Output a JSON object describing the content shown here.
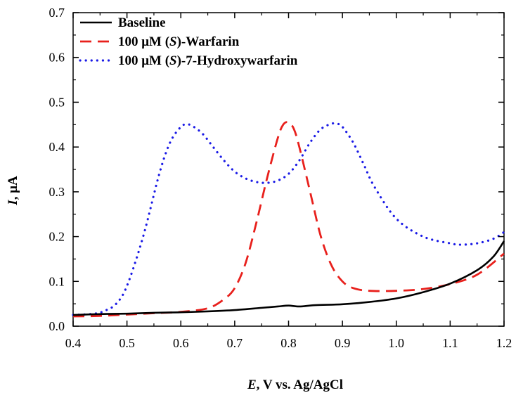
{
  "chart_data": {
    "type": "line",
    "xlabel": {
      "italic": "E",
      "rest": ", V vs. Ag/AgCl"
    },
    "ylabel": {
      "italic": "I",
      "rest": ", μA"
    },
    "xlim": [
      0.4,
      1.2
    ],
    "ylim": [
      0.0,
      0.7
    ],
    "x_ticks": [
      "0.4",
      "0.5",
      "0.6",
      "0.7",
      "0.8",
      "0.9",
      "1.0",
      "1.1",
      "1.2"
    ],
    "y_ticks": [
      "0.0",
      "0.1",
      "0.2",
      "0.3",
      "0.4",
      "0.5",
      "0.6",
      "0.7"
    ],
    "grid": false,
    "legend_position": "top-left",
    "series": [
      {
        "name": "Baseline",
        "legend": {
          "pre": "Baseline",
          "italic": "",
          "post": ""
        },
        "color": "#000000",
        "style": "solid",
        "x": [
          0.4,
          0.45,
          0.5,
          0.55,
          0.6,
          0.65,
          0.7,
          0.75,
          0.78,
          0.8,
          0.82,
          0.85,
          0.9,
          0.95,
          1.0,
          1.05,
          1.1,
          1.15,
          1.18,
          1.2
        ],
        "y": [
          0.025,
          0.027,
          0.028,
          0.03,
          0.031,
          0.033,
          0.036,
          0.041,
          0.044,
          0.046,
          0.044,
          0.047,
          0.049,
          0.054,
          0.062,
          0.076,
          0.095,
          0.125,
          0.155,
          0.19
        ]
      },
      {
        "name": "100 μM (S)-Warfarin",
        "legend": {
          "pre": "100 μM (",
          "italic": "S",
          "post": ")-Warfarin"
        },
        "color": "#e8201c",
        "style": "dashed",
        "x": [
          0.4,
          0.45,
          0.5,
          0.55,
          0.6,
          0.65,
          0.68,
          0.7,
          0.72,
          0.74,
          0.76,
          0.78,
          0.79,
          0.8,
          0.81,
          0.82,
          0.84,
          0.86,
          0.88,
          0.9,
          0.92,
          0.95,
          1.0,
          1.05,
          1.1,
          1.15,
          1.2
        ],
        "y": [
          0.022,
          0.023,
          0.026,
          0.029,
          0.032,
          0.04,
          0.06,
          0.085,
          0.14,
          0.23,
          0.33,
          0.42,
          0.45,
          0.455,
          0.44,
          0.4,
          0.3,
          0.2,
          0.135,
          0.1,
          0.085,
          0.079,
          0.079,
          0.083,
          0.094,
          0.115,
          0.162
        ]
      },
      {
        "name": "100 μM (S)-7-Hydroxywarfarin",
        "legend": {
          "pre": "100 μM (",
          "italic": "S",
          "post": ")-7-Hydroxywarfarin"
        },
        "color": "#1a1ae6",
        "style": "dotted",
        "x": [
          0.4,
          0.44,
          0.46,
          0.48,
          0.5,
          0.53,
          0.56,
          0.58,
          0.6,
          0.61,
          0.62,
          0.64,
          0.66,
          0.68,
          0.7,
          0.72,
          0.74,
          0.76,
          0.78,
          0.8,
          0.82,
          0.84,
          0.86,
          0.88,
          0.89,
          0.9,
          0.92,
          0.94,
          0.96,
          1.0,
          1.05,
          1.1,
          1.12,
          1.15,
          1.18,
          1.2
        ],
        "y": [
          0.025,
          0.028,
          0.035,
          0.05,
          0.09,
          0.2,
          0.34,
          0.41,
          0.445,
          0.45,
          0.448,
          0.43,
          0.4,
          0.37,
          0.345,
          0.33,
          0.322,
          0.32,
          0.325,
          0.34,
          0.37,
          0.41,
          0.44,
          0.452,
          0.452,
          0.445,
          0.41,
          0.36,
          0.31,
          0.24,
          0.2,
          0.185,
          0.182,
          0.185,
          0.195,
          0.21
        ]
      }
    ]
  }
}
